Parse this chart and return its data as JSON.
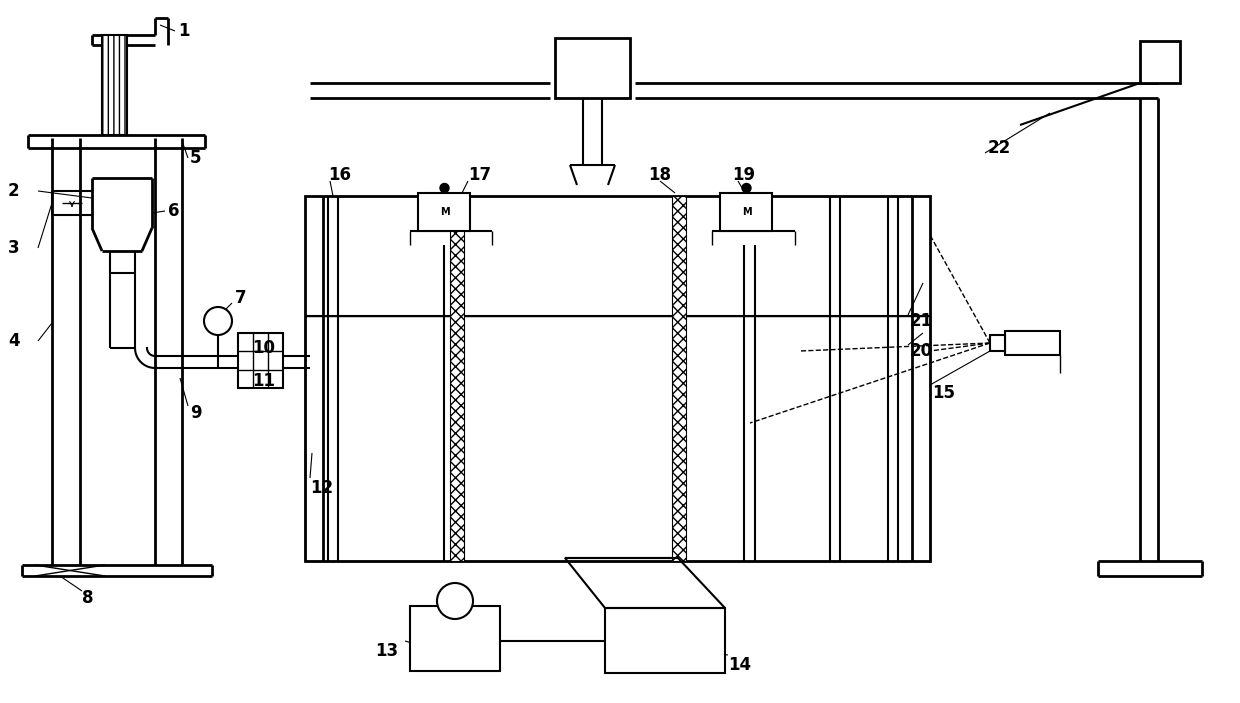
{
  "bg_color": "#ffffff",
  "line_color": "#000000",
  "fig_width": 12.4,
  "fig_height": 7.03
}
